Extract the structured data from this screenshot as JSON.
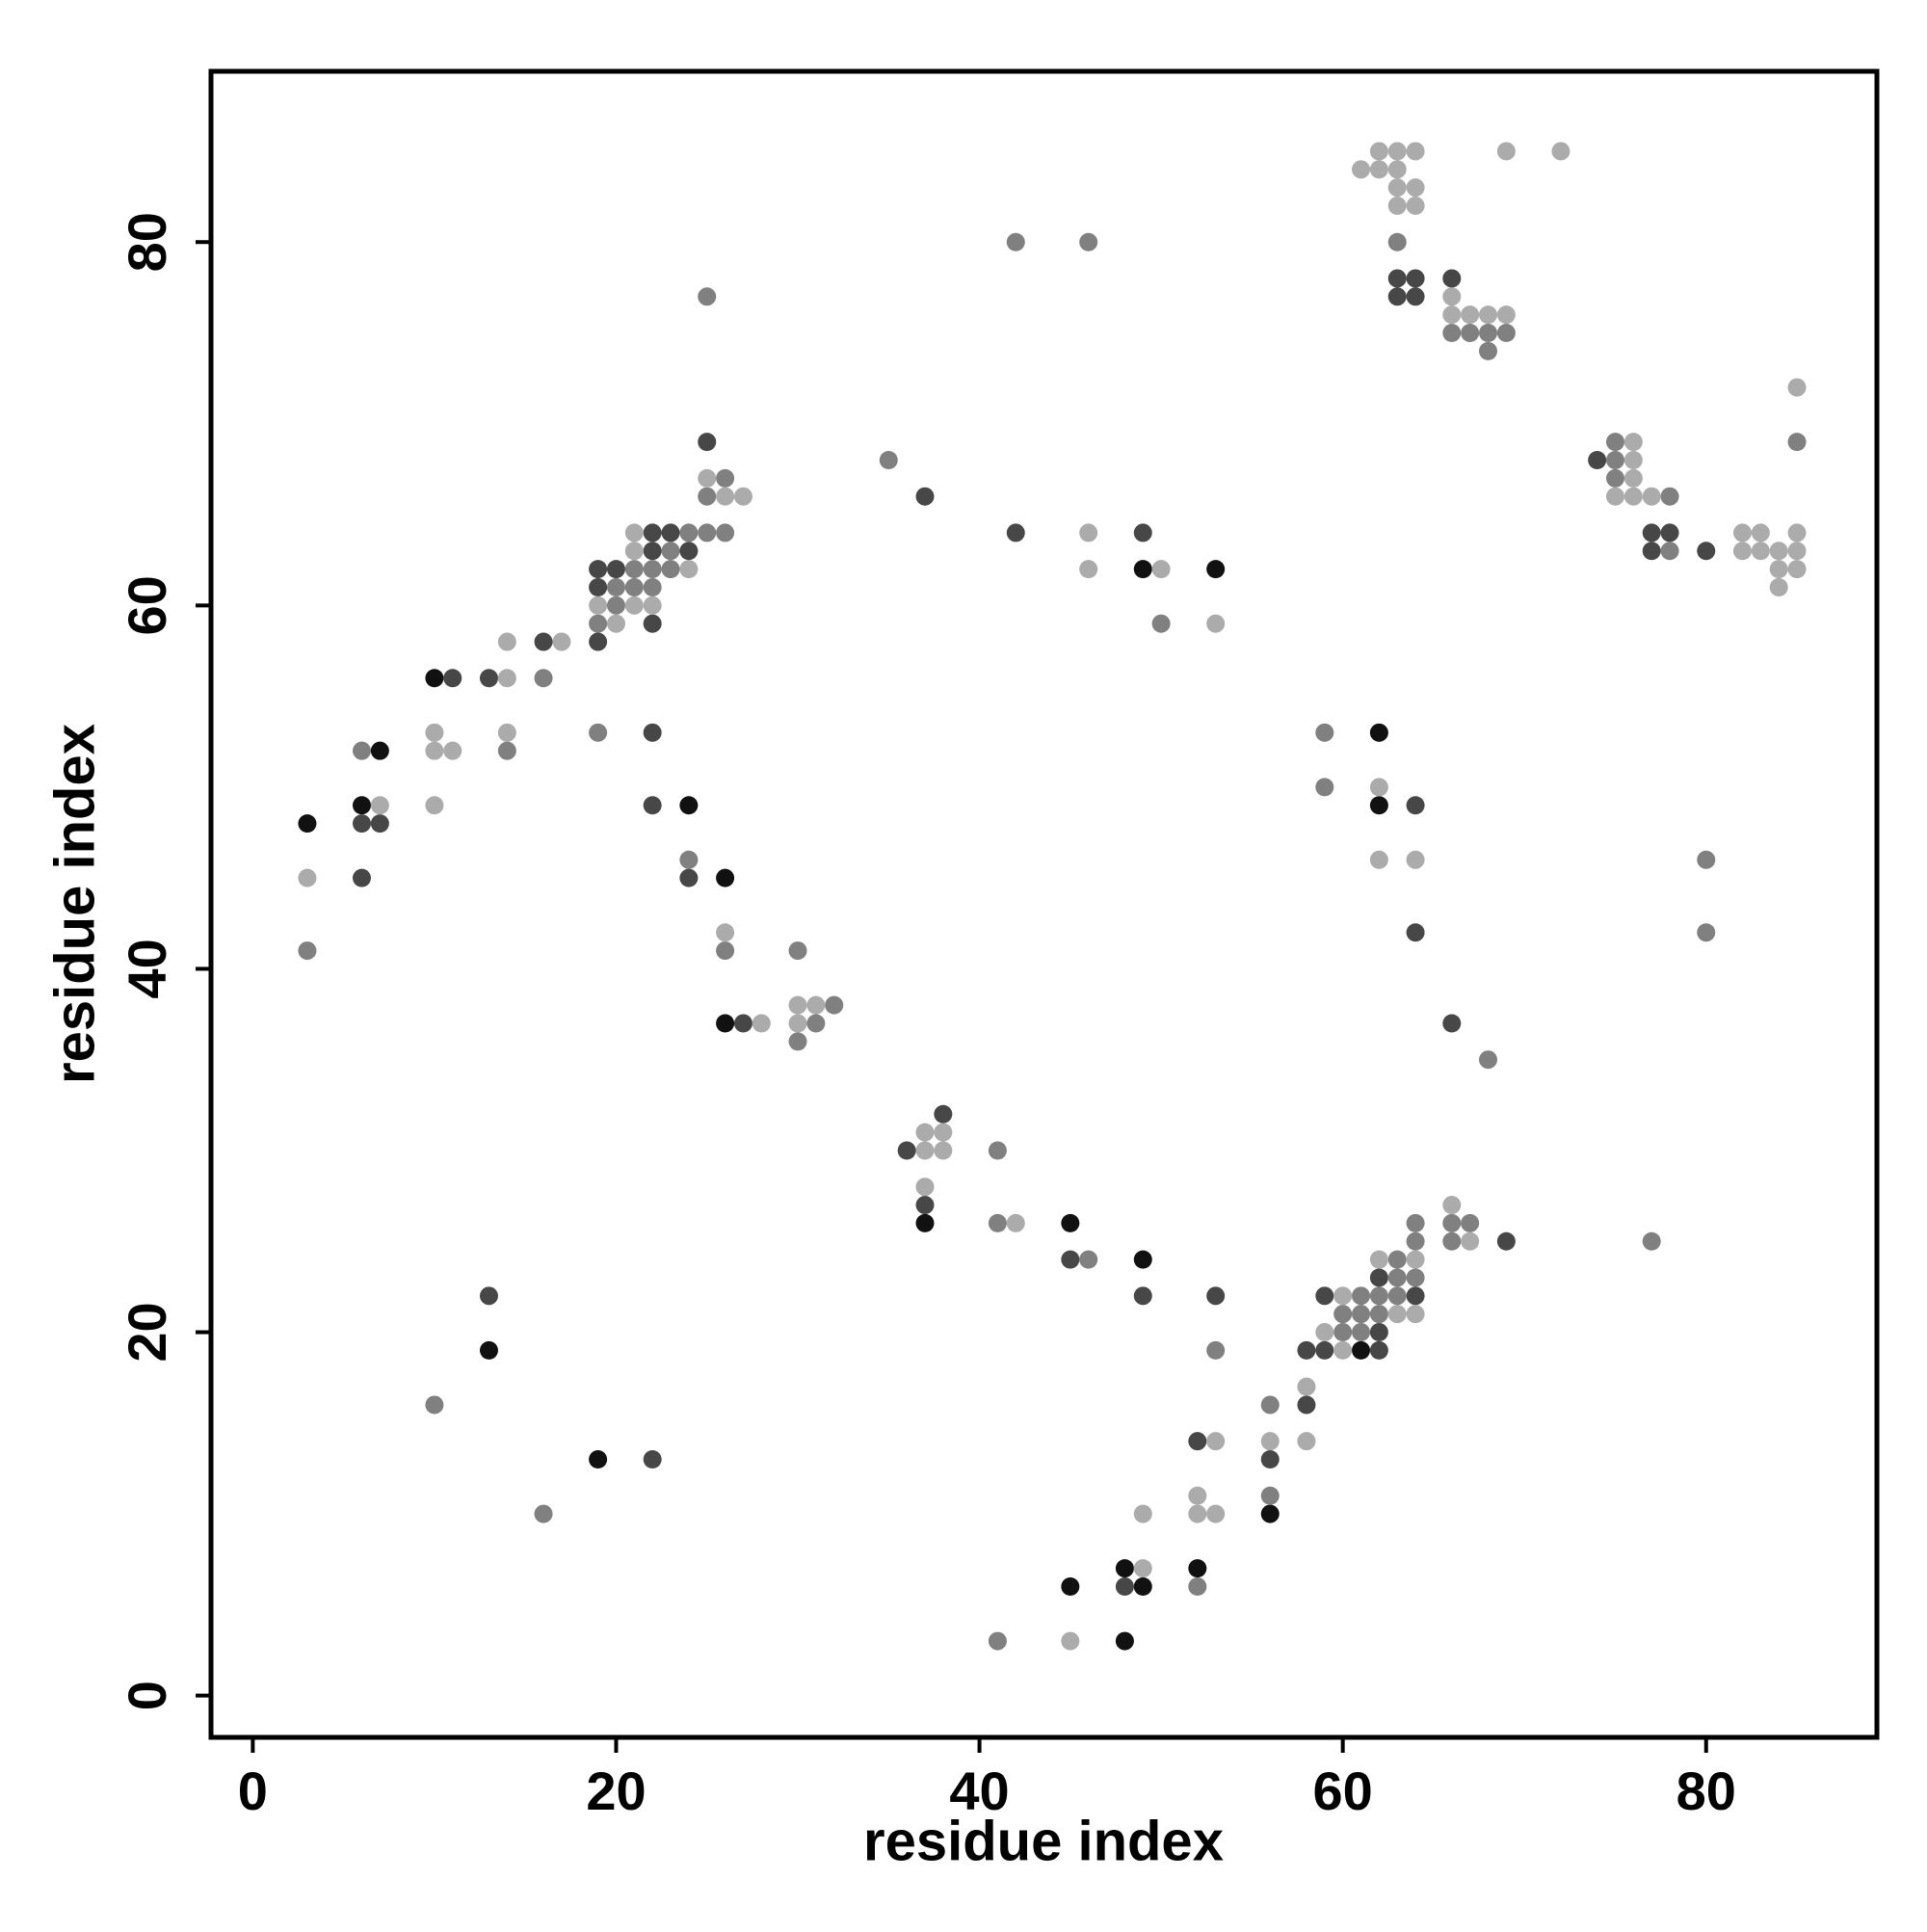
{
  "chart_data": {
    "type": "scatter",
    "xlabel": "residue index",
    "ylabel": "residue index",
    "xlim": [
      -2.3,
      89.4
    ],
    "ylim": [
      -2.3,
      89.4
    ],
    "xticks": [
      0,
      20,
      40,
      60,
      80
    ],
    "yticks": [
      0,
      20,
      40,
      60,
      80
    ],
    "series": [
      {
        "color": "#111111",
        "x": [
          7,
          6,
          10,
          24,
          26,
          26,
          49,
          53,
          37,
          45,
          49,
          19,
          48,
          45,
          48,
          49,
          52,
          56,
          61,
          62,
          62,
          3,
          13
        ],
        "values": [
          52,
          49,
          56,
          49,
          45,
          37,
          62,
          62,
          26,
          26,
          24,
          13,
          3,
          6,
          7,
          6,
          7,
          10,
          19,
          53,
          49,
          48,
          19
        ]
      },
      {
        "color": "#474747",
        "x": [
          6,
          7,
          6,
          11,
          13,
          16,
          19,
          20,
          19,
          22,
          19,
          22,
          22,
          23,
          24,
          25,
          22,
          22,
          24,
          27,
          37,
          42,
          49,
          36,
          38,
          37,
          45,
          49,
          53,
          13,
          22,
          48,
          52,
          56,
          58,
          58,
          59,
          62,
          62,
          59,
          64,
          62,
          69,
          64,
          64,
          66,
          63,
          64,
          63,
          64,
          66,
          74,
          77,
          78,
          77,
          80
        ],
        "values": [
          48,
          48,
          45,
          56,
          56,
          58,
          62,
          62,
          61,
          59,
          58,
          63,
          64,
          64,
          63,
          69,
          53,
          49,
          45,
          37,
          66,
          64,
          64,
          30,
          32,
          27,
          24,
          22,
          22,
          22,
          13,
          6,
          14,
          13,
          16,
          19,
          19,
          20,
          19,
          22,
          22,
          23,
          25,
          49,
          42,
          37,
          78,
          78,
          77,
          77,
          78,
          68,
          64,
          64,
          63,
          63
        ]
      },
      {
        "color": "#808080",
        "x": [
          3,
          6,
          14,
          16,
          20,
          21,
          22,
          20,
          19,
          21,
          22,
          24,
          23,
          23,
          26,
          25,
          25,
          26,
          25,
          19,
          24,
          26,
          30,
          32,
          31,
          30,
          35,
          42,
          46,
          50,
          41,
          41,
          46,
          53,
          10,
          16,
          41,
          52,
          56,
          56,
          60,
          61,
          61,
          62,
          63,
          60,
          61,
          62,
          63,
          64,
          63,
          64,
          64,
          66,
          67,
          66,
          77,
          59,
          59,
          68,
          80,
          80,
          63,
          66,
          67,
          68,
          69,
          68,
          75,
          75,
          75,
          78,
          78,
          85
        ],
        "values": [
          41,
          52,
          52,
          56,
          61,
          61,
          61,
          60,
          59,
          62,
          62,
          64,
          63,
          62,
          67,
          66,
          64,
          64,
          77,
          53,
          46,
          41,
          41,
          38,
          37,
          36,
          68,
          80,
          80,
          59,
          30,
          26,
          24,
          19,
          16,
          10,
          3,
          6,
          16,
          11,
          20,
          20,
          22,
          22,
          22,
          21,
          21,
          21,
          23,
          23,
          24,
          25,
          26,
          26,
          26,
          25,
          25,
          53,
          50,
          35,
          46,
          42,
          80,
          75,
          75,
          75,
          75,
          74,
          69,
          68,
          67,
          66,
          63,
          69
        ]
      },
      {
        "color": "#ababab",
        "x": [
          3,
          7,
          10,
          10,
          11,
          10,
          14,
          14,
          14,
          17,
          19,
          21,
          22,
          20,
          21,
          21,
          24,
          25,
          26,
          27,
          26,
          28,
          30,
          31,
          30,
          46,
          46,
          50,
          53,
          37,
          38,
          37,
          38,
          37,
          42,
          45,
          49,
          49,
          52,
          53,
          52,
          53,
          56,
          58,
          58,
          59,
          60,
          60,
          63,
          64,
          62,
          64,
          66,
          67,
          62,
          62,
          64,
          61,
          62,
          63,
          62,
          63,
          64,
          63,
          64,
          63,
          64,
          66,
          66,
          67,
          68,
          69,
          69,
          72,
          76,
          76,
          76,
          75,
          76,
          77,
          82,
          83,
          82,
          83,
          84,
          84,
          85,
          85,
          85,
          84,
          85
        ],
        "values": [
          45,
          49,
          53,
          52,
          52,
          49,
          56,
          58,
          53,
          58,
          60,
          60,
          60,
          59,
          63,
          64,
          62,
          67,
          66,
          66,
          42,
          37,
          38,
          38,
          37,
          64,
          62,
          62,
          59,
          31,
          31,
          30,
          30,
          28,
          26,
          3,
          7,
          10,
          10,
          10,
          11,
          14,
          14,
          17,
          14,
          20,
          19,
          22,
          21,
          21,
          24,
          24,
          27,
          25,
          50,
          46,
          46,
          84,
          84,
          84,
          85,
          85,
          85,
          83,
          83,
          82,
          82,
          77,
          76,
          76,
          76,
          76,
          85,
          85,
          69,
          68,
          67,
          66,
          66,
          66,
          64,
          64,
          63,
          63,
          63,
          62,
          62,
          63,
          64,
          61,
          72
        ]
      }
    ]
  }
}
